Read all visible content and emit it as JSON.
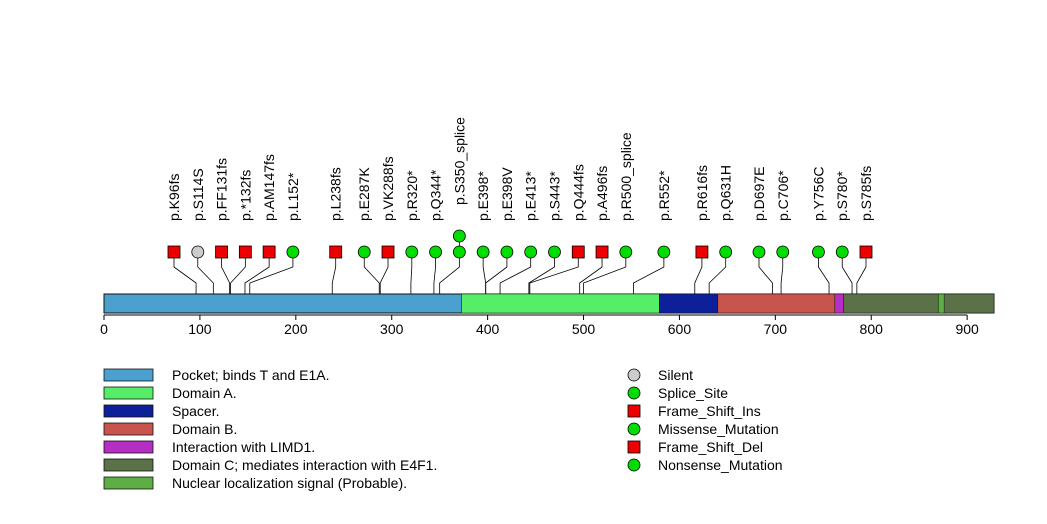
{
  "chart_data": {
    "type": "lollipop",
    "title": "",
    "protein_length": 928,
    "xlim": [
      0,
      928
    ],
    "xticks": [
      0,
      100,
      200,
      300,
      400,
      500,
      600,
      700,
      800,
      900
    ],
    "xtick_labels": [
      "0",
      "100",
      "200",
      "300",
      "400",
      "500",
      "600",
      "700",
      "800",
      "900"
    ],
    "domains": [
      {
        "name": "Pocket; binds T and E1A.",
        "start": 0,
        "end": 928,
        "color": "#4aa0cf"
      },
      {
        "name": "Domain A.",
        "start": 373,
        "end": 579,
        "color": "#55ee66"
      },
      {
        "name": "Spacer.",
        "start": 579,
        "end": 640,
        "color": "#0d1f99"
      },
      {
        "name": "Domain B.",
        "start": 640,
        "end": 771,
        "color": "#c9534d"
      },
      {
        "name": "Interaction with LIMD1.",
        "start": 762,
        "end": 771,
        "color": "#b62ec3"
      },
      {
        "name": "Domain C; mediates interaction with E4F1.",
        "start": 771,
        "end": 928,
        "color": "#5b7148"
      },
      {
        "name": "Nuclear localization signal (Probable).",
        "start": 870,
        "end": 876,
        "color": "#5daf45"
      }
    ],
    "mutations": [
      {
        "label": "p.K96fs",
        "position": 96,
        "type": "Frame_Shift_Ins",
        "stack": 1
      },
      {
        "label": "p.S114S",
        "position": 114,
        "type": "Silent",
        "stack": 1
      },
      {
        "label": "p.FF131fs",
        "position": 131,
        "type": "Frame_Shift_Ins",
        "stack": 1
      },
      {
        "label": "p.*132fs",
        "position": 132,
        "type": "Frame_Shift_Ins",
        "stack": 1
      },
      {
        "label": "p.AM147fs",
        "position": 147,
        "type": "Frame_Shift_Ins",
        "stack": 1
      },
      {
        "label": "p.L152*",
        "position": 152,
        "type": "Nonsense_Mutation",
        "stack": 1
      },
      {
        "label": "p.L238fs",
        "position": 238,
        "type": "Frame_Shift_Ins",
        "stack": 1
      },
      {
        "label": "p.E287K",
        "position": 287,
        "type": "Missense_Mutation",
        "stack": 1
      },
      {
        "label": "p.VK288fs",
        "position": 288,
        "type": "Frame_Shift_Del",
        "stack": 1
      },
      {
        "label": "p.R320*",
        "position": 320,
        "type": "Nonsense_Mutation",
        "stack": 1
      },
      {
        "label": "p.Q344*",
        "position": 344,
        "type": "Nonsense_Mutation",
        "stack": 1
      },
      {
        "label": "p.S350_splice",
        "position": 350,
        "type": "Splice_Site",
        "stack": 2
      },
      {
        "label": "p.E398*",
        "position": 398,
        "type": "Nonsense_Mutation",
        "stack": 1
      },
      {
        "label": "p.E398V",
        "position": 398,
        "type": "Missense_Mutation",
        "stack": 1
      },
      {
        "label": "p.E413*",
        "position": 413,
        "type": "Nonsense_Mutation",
        "stack": 1
      },
      {
        "label": "p.S443*",
        "position": 443,
        "type": "Nonsense_Mutation",
        "stack": 1
      },
      {
        "label": "p.Q444fs",
        "position": 444,
        "type": "Frame_Shift_Del",
        "stack": 1
      },
      {
        "label": "p.A496fs",
        "position": 496,
        "type": "Frame_Shift_Del",
        "stack": 1
      },
      {
        "label": "p.R500_splice",
        "position": 500,
        "type": "Splice_Site",
        "stack": 1
      },
      {
        "label": "p.R552*",
        "position": 552,
        "type": "Nonsense_Mutation",
        "stack": 1
      },
      {
        "label": "p.R616fs",
        "position": 616,
        "type": "Frame_Shift_Del",
        "stack": 1
      },
      {
        "label": "p.Q631H",
        "position": 631,
        "type": "Missense_Mutation",
        "stack": 1
      },
      {
        "label": "p.D697E",
        "position": 697,
        "type": "Missense_Mutation",
        "stack": 1
      },
      {
        "label": "p.C706*",
        "position": 706,
        "type": "Nonsense_Mutation",
        "stack": 1
      },
      {
        "label": "p.Y756C",
        "position": 756,
        "type": "Missense_Mutation",
        "stack": 1
      },
      {
        "label": "p.S780*",
        "position": 780,
        "type": "Nonsense_Mutation",
        "stack": 1
      },
      {
        "label": "p.S785fs",
        "position": 785,
        "type": "Frame_Shift_Del",
        "stack": 1
      }
    ],
    "mutation_types": [
      {
        "name": "Silent",
        "shape": "circle",
        "color": "#cccccc"
      },
      {
        "name": "Splice_Site",
        "shape": "circle",
        "color": "#00dd00"
      },
      {
        "name": "Frame_Shift_Ins",
        "shape": "square",
        "color": "#ee0000"
      },
      {
        "name": "Missense_Mutation",
        "shape": "circle",
        "color": "#00dd00"
      },
      {
        "name": "Frame_Shift_Del",
        "shape": "square",
        "color": "#ee0000"
      },
      {
        "name": "Nonsense_Mutation",
        "shape": "circle",
        "color": "#00dd00"
      }
    ]
  }
}
